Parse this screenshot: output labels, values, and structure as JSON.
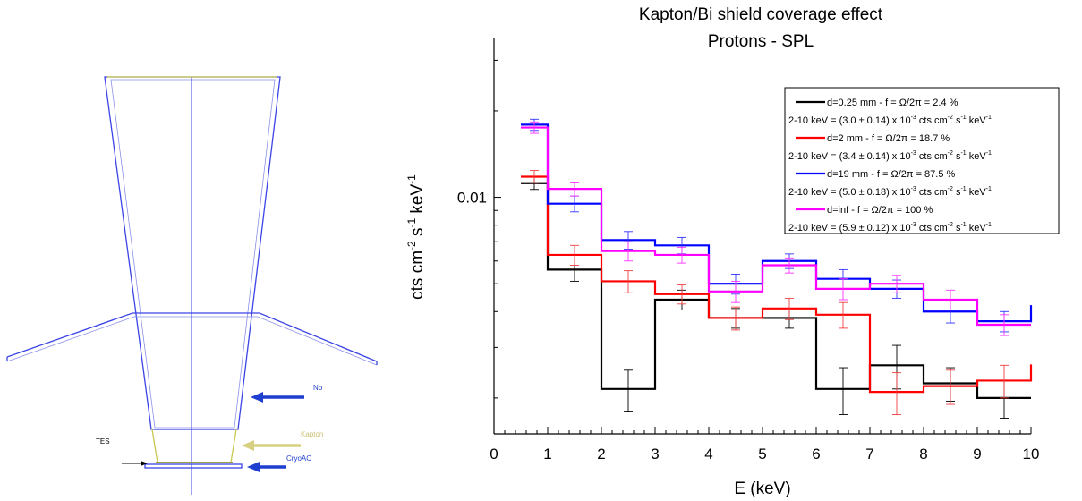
{
  "diagram": {
    "labels": {
      "nb": "Nb",
      "kapton": "Kapton",
      "tes": "TES",
      "cryoac": "CryoAC"
    },
    "colors": {
      "shield": "#3b44e6",
      "kapton": "#c8c850",
      "arrow_blue": "#1f3fd0",
      "arrow_kapton": "#d6d080",
      "arrow_tes": "#000000"
    }
  },
  "chart_data": {
    "type": "line",
    "title": "Kapton/Bi shield coverage effect",
    "subtitle": "Protons - SPL",
    "xlabel": "E (keV)",
    "ylabel_parts": [
      "cts cm",
      "-2",
      " s",
      "-1",
      " keV",
      "-1"
    ],
    "y_scale": "log",
    "xlim": [
      0,
      10
    ],
    "ylim": [
      0.0015,
      0.036
    ],
    "x_ticks": [
      "0",
      "1",
      "2",
      "3",
      "4",
      "5",
      "6",
      "7",
      "8",
      "9",
      "10"
    ],
    "y_tick_labels": [
      {
        "value": 0.01,
        "label": "0.01"
      }
    ],
    "bin_edges": [
      0.5,
      1,
      2,
      3,
      4,
      5,
      6,
      7,
      8,
      9,
      10
    ],
    "series": [
      {
        "name": "d=0.25 mm - f = Ω/2π = 2.4 %",
        "rate": "2-10 keV = (3.0 ± 0.14) x 10",
        "rate_unit": " cts cm",
        "color": "#000000",
        "values": [
          0.0112,
          0.0056,
          0.00215,
          0.0044,
          0.0038,
          0.0038,
          0.00215,
          0.0026,
          0.00225,
          0.002
        ],
        "errors": [
          0.00055,
          0.0005,
          0.00035,
          0.00035,
          0.0003,
          0.0003,
          0.0004,
          0.00045,
          0.0003,
          0.0003
        ],
        "err_color": "#000000"
      },
      {
        "name": "d=2 mm - f = Ω/2π = 18.7 %",
        "rate": "2-10 keV = (3.4 ± 0.14) x 10",
        "rate_unit": " cts cm",
        "color": "#ff0000",
        "values": [
          0.0118,
          0.0063,
          0.0051,
          0.0046,
          0.0038,
          0.0041,
          0.0039,
          0.0021,
          0.0022,
          0.0023
        ],
        "errors": [
          0.0006,
          0.0005,
          0.00045,
          0.00035,
          0.00035,
          0.00035,
          0.0004,
          0.00035,
          0.0003,
          0.0003
        ],
        "err_color": "#f04040"
      },
      {
        "name": "d=19 mm - f = Ω/2π = 87.5 %",
        "rate": "2-10 keV = (5.0 ± 0.18) x 10",
        "rate_unit": " cts cm",
        "color": "#0000ff",
        "values": [
          0.0179,
          0.0095,
          0.0071,
          0.0068,
          0.005,
          0.006,
          0.0052,
          0.0048,
          0.004,
          0.0037
        ],
        "errors": [
          0.0008,
          0.0006,
          0.0005,
          0.00045,
          0.0004,
          0.00035,
          0.0004,
          0.00035,
          0.00035,
          0.0003
        ],
        "err_color": "#3333ff"
      },
      {
        "name": "d=inf - f = Ω/2π = 100 %",
        "rate": "2-10 keV = (5.9 ± 0.12) x 10",
        "rate_unit": " cts cm",
        "color": "#ff00ff",
        "values": [
          0.0175,
          0.0107,
          0.0065,
          0.0063,
          0.0047,
          0.0058,
          0.0048,
          0.005,
          0.0044,
          0.0036
        ],
        "errors": [
          0.0008,
          0.0006,
          0.0005,
          0.0004,
          0.0004,
          0.00035,
          0.0004,
          0.00035,
          0.00035,
          0.0003
        ],
        "err_color": "#ff33ff"
      }
    ],
    "legend_position": "top-right",
    "grid": false
  }
}
